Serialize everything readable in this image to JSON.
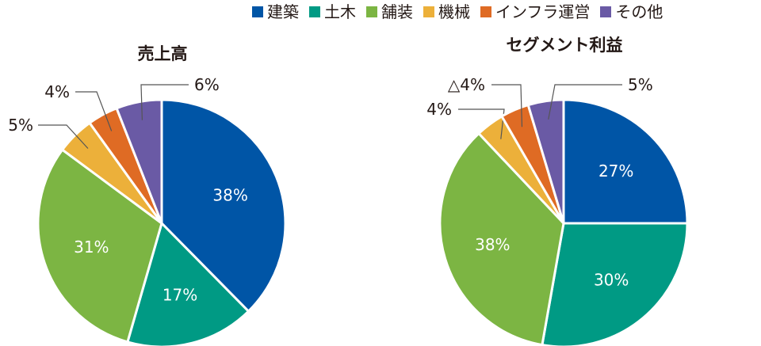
{
  "legend": [
    {
      "label": "建築",
      "color": "#0055a6"
    },
    {
      "label": "土木",
      "color": "#009a84"
    },
    {
      "label": "舗装",
      "color": "#7cb543"
    },
    {
      "label": "機械",
      "color": "#ecb03a"
    },
    {
      "label": "インフラ運営",
      "color": "#df6b24"
    },
    {
      "label": "その他",
      "color": "#6a5aa5"
    }
  ],
  "chart_data": [
    {
      "type": "pie",
      "title": "売上高",
      "categories": [
        "建築",
        "土木",
        "舗装",
        "機械",
        "インフラ運営",
        "その他"
      ],
      "values": [
        38,
        17,
        31,
        5,
        4,
        6
      ],
      "labels": [
        "38%",
        "17%",
        "31%",
        "5%",
        "4%",
        "6%"
      ],
      "colors": [
        "#0055a6",
        "#009a84",
        "#7cb543",
        "#ecb03a",
        "#df6b24",
        "#6a5aa5"
      ]
    },
    {
      "type": "pie",
      "title": "セグメント利益",
      "categories": [
        "建築",
        "土木",
        "舗装",
        "機械",
        "インフラ運営",
        "その他"
      ],
      "values": [
        27,
        30,
        38,
        4,
        -4,
        5
      ],
      "labels": [
        "27%",
        "30%",
        "38%",
        "4%",
        "△4%",
        "5%"
      ],
      "colors": [
        "#0055a6",
        "#009a84",
        "#7cb543",
        "#ecb03a",
        "#df6b24",
        "#6a5aa5"
      ]
    }
  ]
}
